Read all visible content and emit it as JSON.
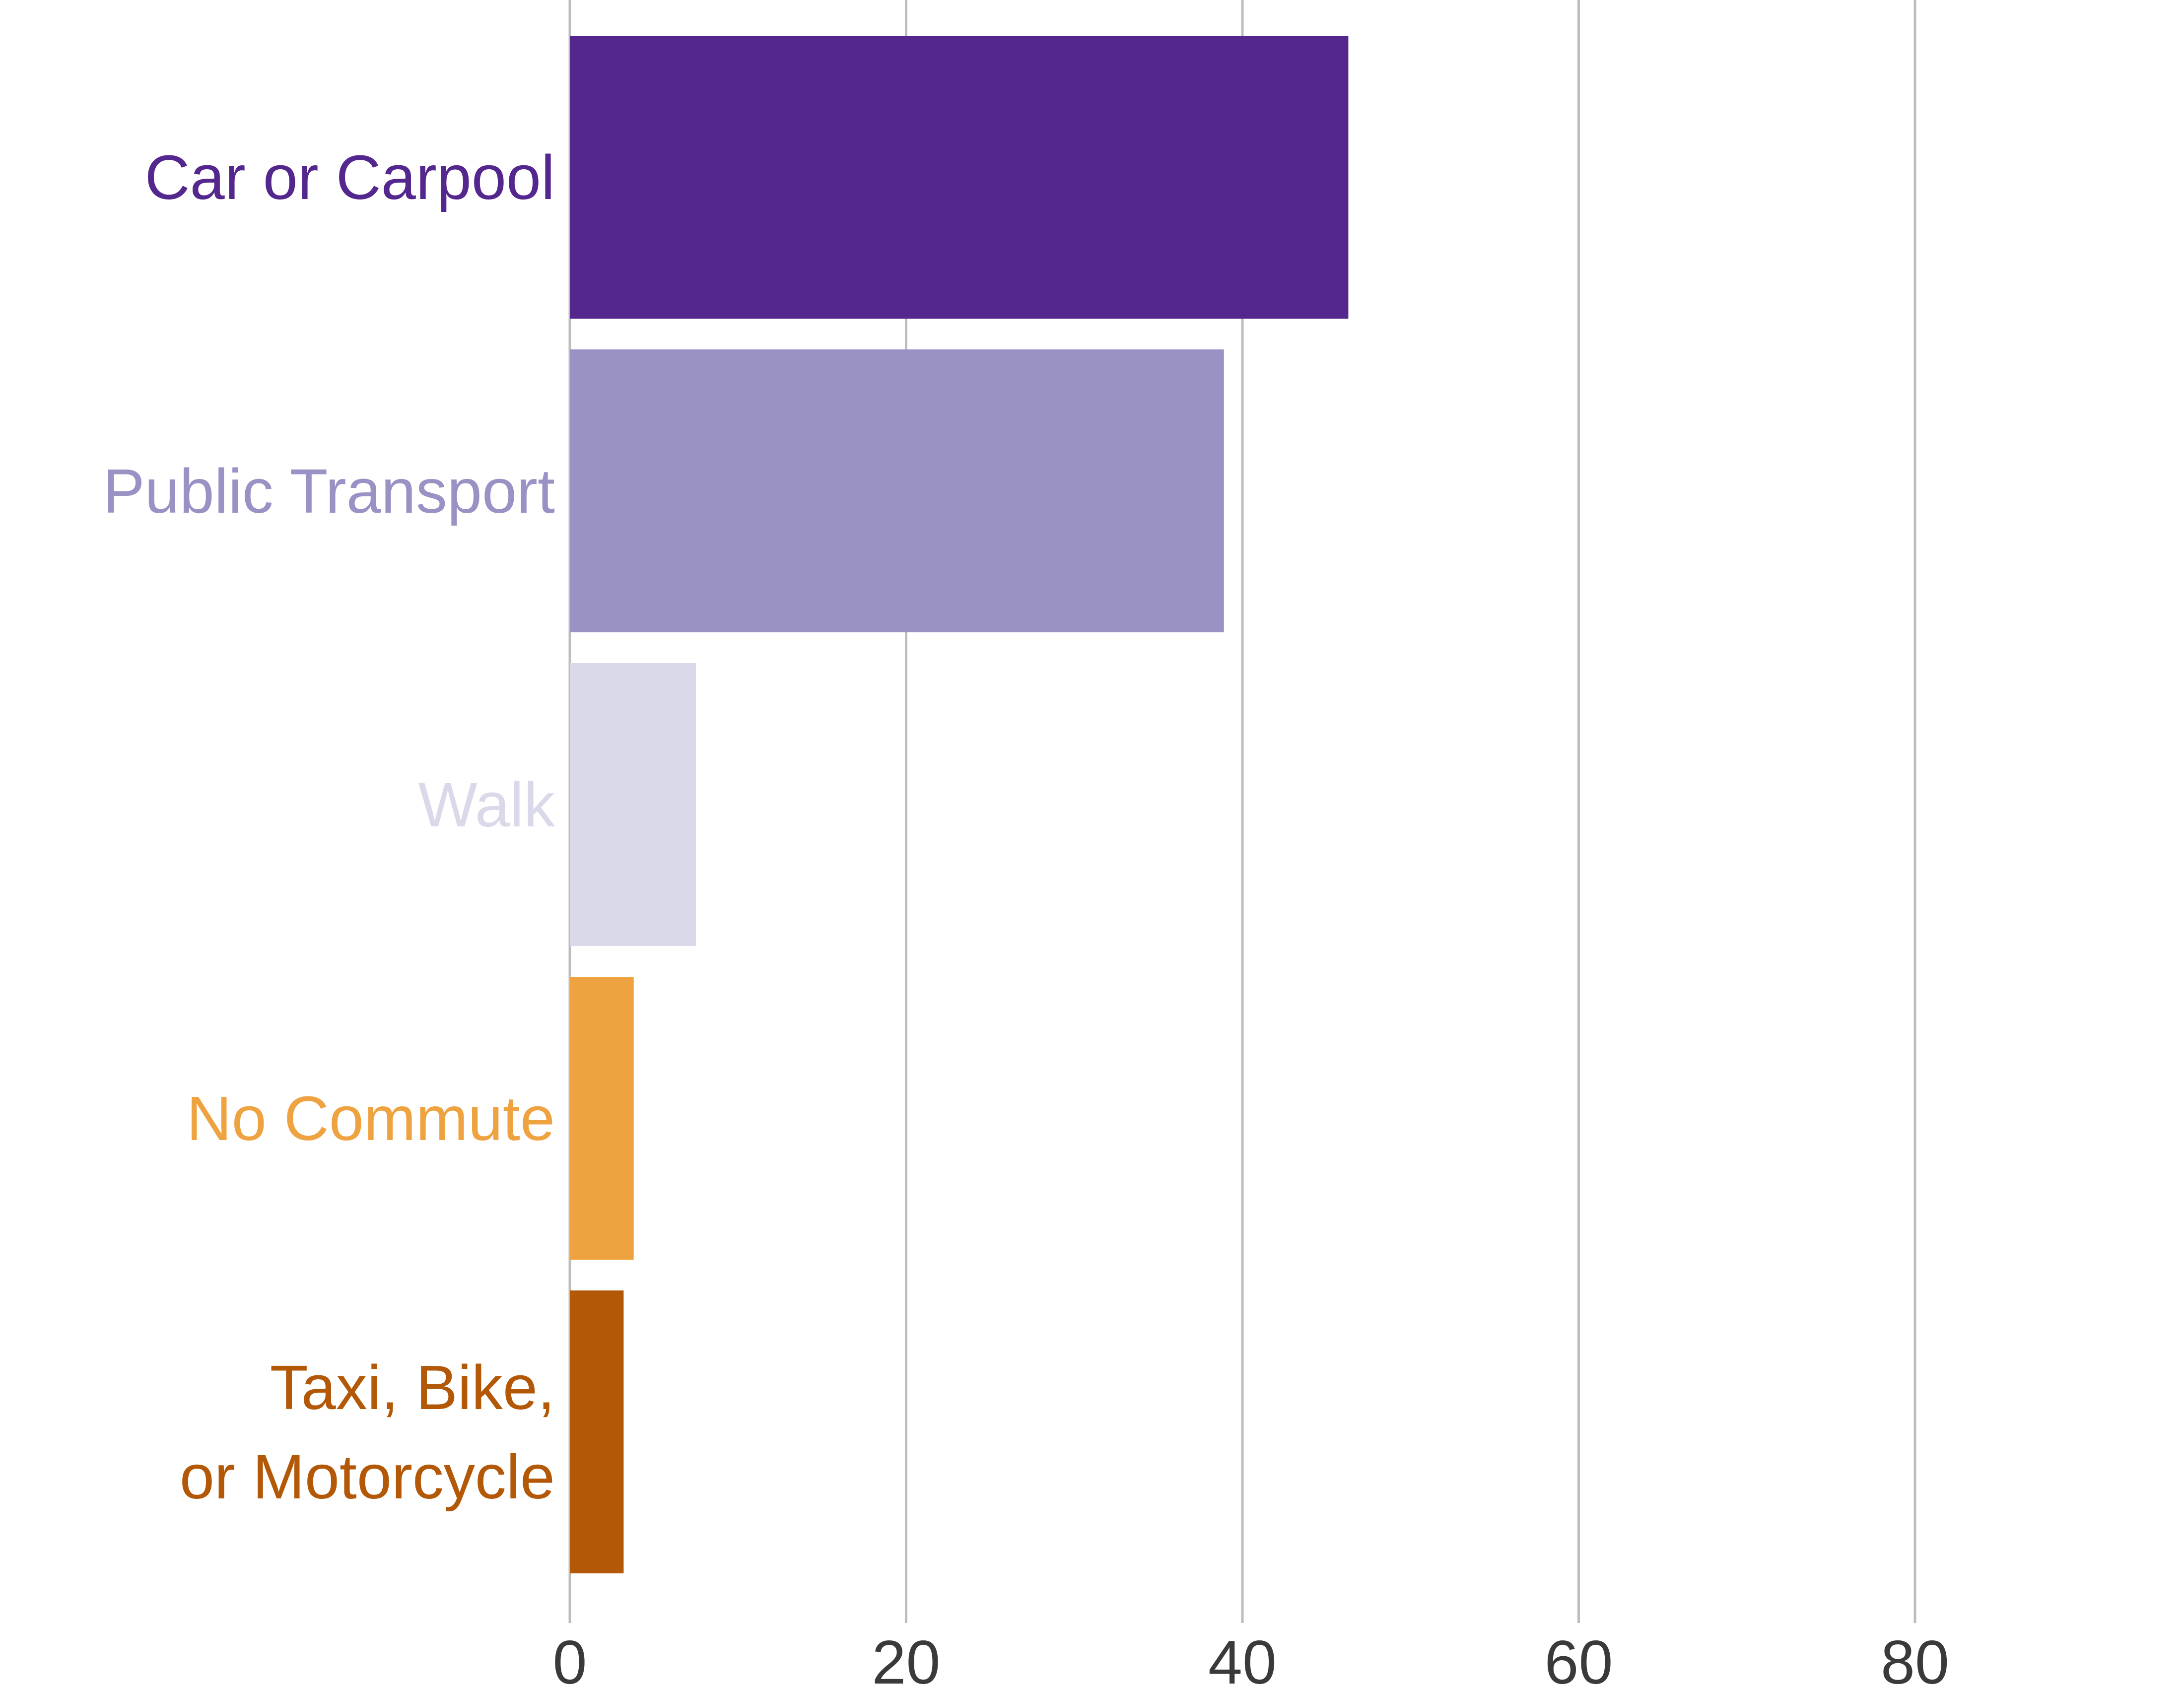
{
  "chart_data": {
    "type": "bar",
    "orientation": "horizontal",
    "title": "",
    "xlabel": "",
    "ylabel": "",
    "categories": [
      "Car or Carpool",
      "Public Transport",
      "Walk",
      "No Commute",
      "Taxi, Bike, or Motorcycle"
    ],
    "category_lines": [
      [
        "Car or Carpool"
      ],
      [
        "Public Transport"
      ],
      [
        "Walk"
      ],
      [
        "No Commute"
      ],
      [
        "Taxi, Bike,",
        "or Motorcycle"
      ]
    ],
    "values": [
      46.3,
      38.9,
      7.5,
      3.8,
      3.2
    ],
    "colors": [
      "#54278f",
      "#9a92c4",
      "#d9d9ea",
      "#efa340",
      "#b35806"
    ],
    "xlim": [
      0,
      96
    ],
    "x_ticks": [
      0,
      20,
      40,
      60,
      80
    ],
    "x_tick_labels": [
      "0",
      "20",
      "40",
      "60",
      "80"
    ],
    "grid": "vertical",
    "legend": "none"
  }
}
